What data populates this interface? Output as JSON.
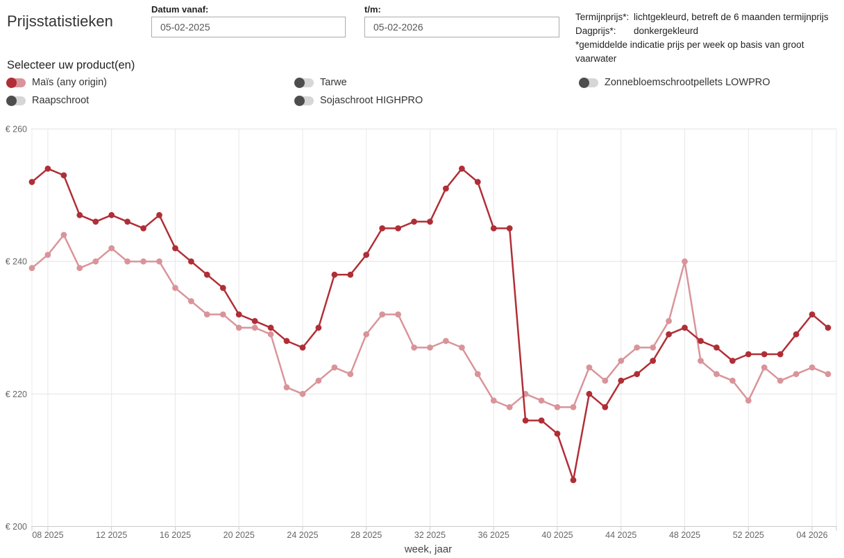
{
  "title": "Prijsstatistieken",
  "date_from": {
    "label": "Datum vanaf:",
    "value": "05-02-2025"
  },
  "date_to": {
    "label": "t/m:",
    "value": "05-02-2026"
  },
  "legend_note": {
    "rows": [
      {
        "term": "Termijnprijs*:",
        "desc": "lichtgekleurd, betreft de 6 maanden termijnprijs"
      },
      {
        "term": "Dagprijs*:",
        "desc": "donkergekleurd"
      }
    ],
    "footnote": "*gemiddelde indicatie prijs per week op basis van groot vaarwater"
  },
  "product_selector": {
    "heading": "Selecteer uw product(en)",
    "products": [
      {
        "label": "Maïs (any origin)",
        "active": true
      },
      {
        "label": "Raapschroot",
        "active": false
      },
      {
        "label": "Tarwe",
        "active": false
      },
      {
        "label": "Sojaschroot HIGHPRO",
        "active": false
      },
      {
        "label": "Zonnebloemschrootpellets LOWPRO",
        "active": false
      }
    ]
  },
  "colors": {
    "dagprijs": "#b02e36",
    "termijnprijs": "#d9949a",
    "toggle_off_knob": "#4d4d4d",
    "toggle_off_track": "#d6d6d6",
    "grid": "#e8e8e8",
    "axis": "#c9c9c9",
    "axis_text": "#666666"
  },
  "chart_data": {
    "type": "line",
    "title": "",
    "xlabel": "week, jaar",
    "ylabel": "€",
    "ylim": [
      200,
      260
    ],
    "grid": true,
    "legend_position": "none",
    "yticks": [
      {
        "value": 260,
        "label": "€ 260"
      },
      {
        "value": 240,
        "label": "€ 240"
      },
      {
        "value": 220,
        "label": "€ 220"
      },
      {
        "value": 200,
        "label": "€ 200"
      }
    ],
    "categories": [
      "07 2025",
      "08 2025",
      "09 2025",
      "10 2025",
      "11 2025",
      "12 2025",
      "13 2025",
      "14 2025",
      "15 2025",
      "16 2025",
      "17 2025",
      "18 2025",
      "19 2025",
      "20 2025",
      "21 2025",
      "22 2025",
      "23 2025",
      "24 2025",
      "25 2025",
      "26 2025",
      "27 2025",
      "28 2025",
      "29 2025",
      "30 2025",
      "31 2025",
      "32 2025",
      "33 2025",
      "34 2025",
      "35 2025",
      "36 2025",
      "37 2025",
      "38 2025",
      "39 2025",
      "40 2025",
      "41 2025",
      "42 2025",
      "43 2025",
      "44 2025",
      "45 2025",
      "46 2025",
      "47 2025",
      "48 2025",
      "49 2025",
      "50 2025",
      "51 2025",
      "52 2025",
      "01 2026",
      "02 2026",
      "03 2026",
      "04 2026",
      "05 2026"
    ],
    "xticks": [
      {
        "index": 1,
        "label": "08 2025"
      },
      {
        "index": 5,
        "label": "12 2025"
      },
      {
        "index": 9,
        "label": "16 2025"
      },
      {
        "index": 13,
        "label": "20 2025"
      },
      {
        "index": 17,
        "label": "24 2025"
      },
      {
        "index": 21,
        "label": "28 2025"
      },
      {
        "index": 25,
        "label": "32 2025"
      },
      {
        "index": 29,
        "label": "36 2025"
      },
      {
        "index": 33,
        "label": "40 2025"
      },
      {
        "index": 37,
        "label": "44 2025"
      },
      {
        "index": 41,
        "label": "48 2025"
      },
      {
        "index": 45,
        "label": "52 2025"
      },
      {
        "index": 49,
        "label": "04 2026"
      }
    ],
    "series": [
      {
        "name": "Termijnprijs (Maïs, any origin)",
        "color": "#d9949a",
        "values": [
          239,
          241,
          244,
          239,
          240,
          242,
          240,
          240,
          240,
          236,
          234,
          232,
          232,
          230,
          230,
          229,
          221,
          220,
          222,
          224,
          223,
          229,
          232,
          232,
          227,
          227,
          228,
          227,
          223,
          219,
          218,
          220,
          219,
          218,
          218,
          224,
          222,
          225,
          227,
          227,
          231,
          240,
          225,
          223,
          222,
          219,
          224,
          222,
          223,
          224,
          223
        ]
      },
      {
        "name": "Dagprijs (Maïs, any origin)",
        "color": "#b02e36",
        "values": [
          252,
          254,
          253,
          247,
          246,
          247,
          246,
          245,
          247,
          242,
          240,
          238,
          236,
          232,
          231,
          230,
          228,
          227,
          230,
          238,
          238,
          241,
          245,
          245,
          246,
          246,
          251,
          254,
          252,
          245,
          245,
          216,
          216,
          214,
          207,
          220,
          218,
          222,
          223,
          225,
          229,
          230,
          228,
          227,
          225,
          226,
          226,
          226,
          229,
          232,
          230
        ]
      }
    ]
  }
}
